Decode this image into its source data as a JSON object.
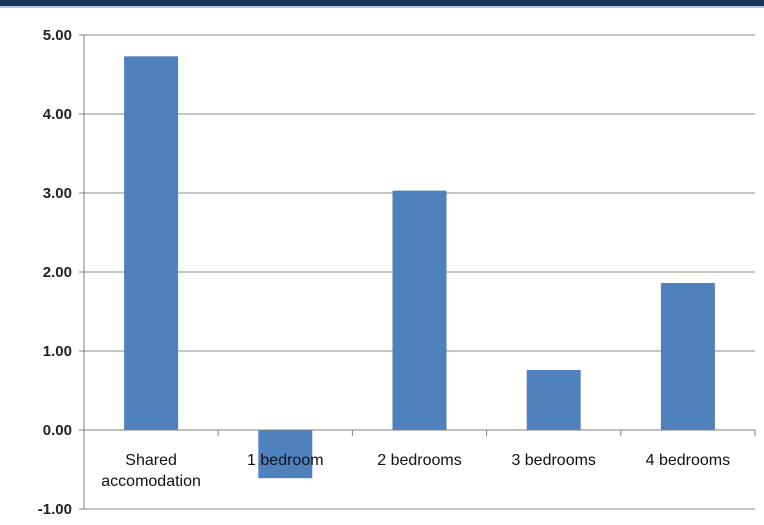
{
  "chart_data": {
    "type": "bar",
    "categories": [
      "Shared\naccomodation",
      "1 bedroom",
      "2 bedrooms",
      "3 bedrooms",
      "4 bedrooms"
    ],
    "values": [
      4.73,
      -0.61,
      3.03,
      0.76,
      1.86
    ],
    "y_tick_labels": [
      "5.00",
      "4.00",
      "3.00",
      "2.00",
      "1.00",
      "0.00",
      "-1.00"
    ],
    "ylim": [
      -1,
      5
    ],
    "grid": true,
    "title": "",
    "xlabel": "",
    "ylabel": "",
    "bar_color": "#4f81bd",
    "accent_color": "#17375e"
  }
}
